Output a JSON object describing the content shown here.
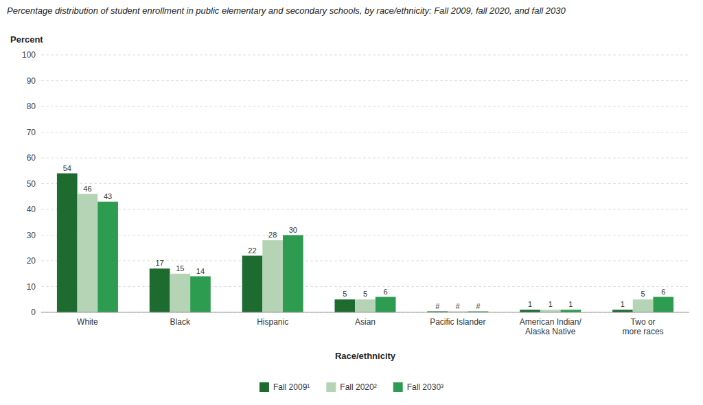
{
  "chart_data": {
    "type": "bar",
    "title": "Percentage distribution of student enrollment in public elementary and secondary schools, by race/ethnicity: Fall 2009, fall 2020, and fall 2030",
    "xlabel": "Race/ethnicity",
    "ylabel": "Percent",
    "categories": [
      "White",
      "Black",
      "Hispanic",
      "Asian",
      "Pacific Islander",
      "American Indian/\nAlaska Native",
      "Two or\nmore races"
    ],
    "series": [
      {
        "name": "Fall 2009¹",
        "color": "#1e6b30",
        "values": [
          54,
          17,
          22,
          5,
          0.4,
          1,
          1
        ],
        "value_labels": [
          "54",
          "17",
          "22",
          "5",
          "#",
          "1",
          "1"
        ]
      },
      {
        "name": "Fall 2020²",
        "color": "#b5d4b5",
        "values": [
          46,
          15,
          28,
          5,
          0.4,
          1,
          5
        ],
        "value_labels": [
          "46",
          "15",
          "28",
          "5",
          "#",
          "1",
          "5"
        ]
      },
      {
        "name": "Fall 2030³",
        "color": "#2e9c50",
        "values": [
          43,
          14,
          30,
          6,
          0.4,
          1,
          6
        ],
        "value_labels": [
          "43",
          "14",
          "30",
          "6",
          "#",
          "1",
          "6"
        ]
      }
    ],
    "ylim": [
      0,
      100
    ],
    "yticks": [
      0,
      10,
      20,
      30,
      40,
      50,
      60,
      70,
      80,
      90,
      100
    ],
    "grid": true,
    "data_labels": true,
    "legend": "bottom"
  }
}
